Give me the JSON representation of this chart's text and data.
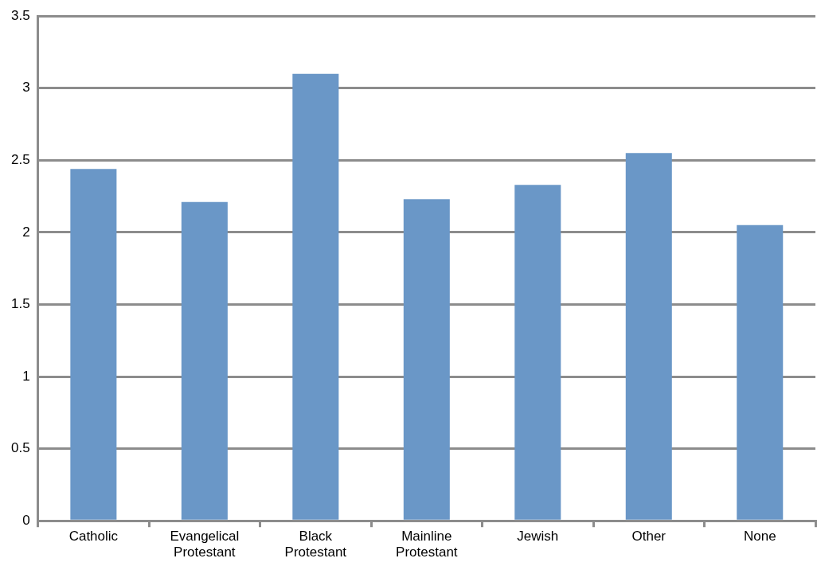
{
  "chart_data": {
    "type": "bar",
    "categories": [
      "Catholic",
      "Evangelical Protestant",
      "Black Protestant",
      "Mainline Protestant",
      "Jewish",
      "Other",
      "None"
    ],
    "values": [
      2.44,
      2.21,
      3.1,
      2.23,
      2.33,
      2.55,
      2.05
    ],
    "color": "#6a97c7",
    "ylim": [
      0,
      3.5
    ],
    "yticks": [
      0,
      0.5,
      1,
      1.5,
      2,
      2.5,
      3,
      3.5
    ],
    "grid": "y",
    "legend": false
  }
}
